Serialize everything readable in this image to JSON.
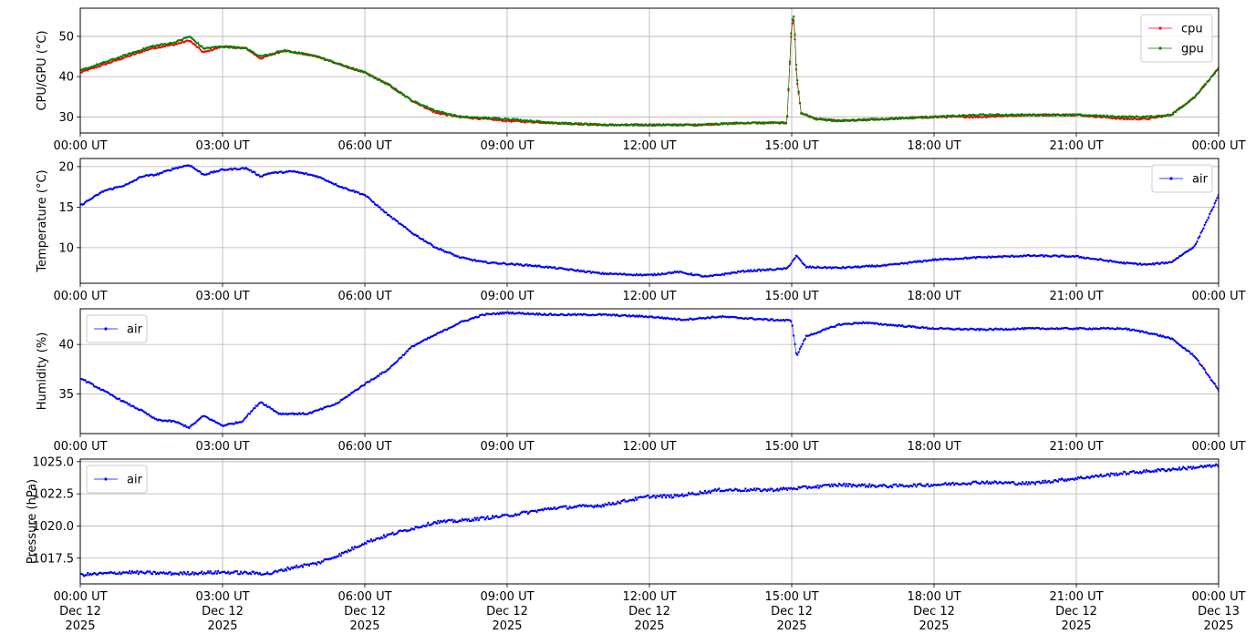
{
  "chart_data": [
    {
      "type": "line",
      "ylabel": "CPU/GPU (°C)",
      "x_ticks": [
        "00:00 UT",
        "03:00 UT",
        "06:00 UT",
        "09:00 UT",
        "12:00 UT",
        "15:00 UT",
        "18:00 UT",
        "21:00 UT",
        "00:00 UT"
      ],
      "xlim_hours": [
        0,
        24
      ],
      "ylim": [
        26,
        57
      ],
      "y_ticks": [
        30,
        40,
        50
      ],
      "grid": true,
      "legend_position": "top-right",
      "series": [
        {
          "name": "cpu",
          "color": "#ff0000",
          "x_hours": [
            0,
            0.5,
            1,
            1.5,
            2,
            2.3,
            2.6,
            3,
            3.5,
            3.8,
            4.3,
            5,
            5.6,
            6,
            6.5,
            7,
            7.5,
            8,
            9,
            10,
            11,
            12,
            13,
            14,
            14.9,
            15.0,
            15.05,
            15.1,
            15.2,
            15.5,
            16,
            17,
            18,
            19,
            20,
            21,
            22,
            22.5,
            23,
            23.5,
            24
          ],
          "values": [
            41,
            43,
            45,
            47,
            48,
            49,
            46,
            47.5,
            47,
            44.5,
            46.5,
            45,
            42.5,
            41,
            38,
            34,
            31,
            30,
            29,
            28.5,
            28,
            28,
            28,
            28.5,
            28.5,
            53,
            54,
            40,
            31,
            29.5,
            29,
            29.5,
            30,
            30,
            30.5,
            30.5,
            29.5,
            29.5,
            30.5,
            35,
            42
          ]
        },
        {
          "name": "gpu",
          "color": "#008000",
          "x_hours": [
            0,
            0.5,
            1,
            1.5,
            2,
            2.3,
            2.6,
            3,
            3.5,
            3.8,
            4.3,
            5,
            5.6,
            6,
            6.5,
            7,
            7.5,
            8,
            9,
            10,
            11,
            12,
            13,
            14,
            14.9,
            15.0,
            15.05,
            15.1,
            15.2,
            15.5,
            16,
            17,
            18,
            19,
            20,
            21,
            22,
            22.5,
            23,
            23.5,
            24
          ],
          "values": [
            41.5,
            43.5,
            45.5,
            47.5,
            48.5,
            50,
            47,
            47.5,
            47,
            45,
            46.5,
            45,
            42.5,
            41,
            38,
            34,
            31.5,
            30,
            29.5,
            28.5,
            28,
            28,
            28,
            28.5,
            28.5,
            54,
            55,
            41,
            31,
            29.5,
            29,
            29.5,
            30,
            30.5,
            30.5,
            30.5,
            30,
            30,
            30.5,
            35,
            42
          ]
        }
      ]
    },
    {
      "type": "line",
      "ylabel": "Temperature (°C)",
      "x_ticks": [
        "00:00 UT",
        "03:00 UT",
        "06:00 UT",
        "09:00 UT",
        "12:00 UT",
        "15:00 UT",
        "18:00 UT",
        "21:00 UT",
        "00:00 UT"
      ],
      "xlim_hours": [
        0,
        24
      ],
      "ylim": [
        5.6,
        21
      ],
      "y_ticks": [
        10,
        15,
        20
      ],
      "grid": true,
      "legend_position": "top-right",
      "series": [
        {
          "name": "air",
          "color": "#0000ff",
          "x_hours": [
            0,
            0.5,
            1,
            1.3,
            1.6,
            2,
            2.3,
            2.6,
            3,
            3.5,
            3.8,
            4,
            4.5,
            5,
            5.5,
            6,
            6.5,
            7,
            7.5,
            8,
            8.5,
            9,
            9.5,
            10,
            11,
            12,
            12.6,
            13.2,
            14,
            14.9,
            15.1,
            15.3,
            16,
            17,
            18,
            19,
            20,
            21,
            22,
            22.5,
            23,
            23.5,
            24
          ],
          "values": [
            15.2,
            17,
            17.8,
            18.8,
            19,
            19.8,
            20.2,
            19,
            19.6,
            19.8,
            18.8,
            19.2,
            19.4,
            18.8,
            17.5,
            16.5,
            14,
            11.8,
            10,
            8.8,
            8.2,
            8,
            7.8,
            7.5,
            6.8,
            6.6,
            7,
            6.4,
            7.1,
            7.4,
            9,
            7.6,
            7.5,
            7.8,
            8.5,
            8.8,
            9,
            8.9,
            8.1,
            7.9,
            8.2,
            10.2,
            16.4
          ]
        }
      ]
    },
    {
      "type": "line",
      "ylabel": "Humidity (%)",
      "x_ticks": [
        "00:00 UT",
        "03:00 UT",
        "06:00 UT",
        "09:00 UT",
        "12:00 UT",
        "15:00 UT",
        "18:00 UT",
        "21:00 UT",
        "00:00 UT"
      ],
      "xlim_hours": [
        0,
        24
      ],
      "ylim": [
        31,
        43.6
      ],
      "y_ticks": [
        35,
        40
      ],
      "grid": true,
      "legend_position": "top-left",
      "series": [
        {
          "name": "air",
          "color": "#0000ff",
          "x_hours": [
            0,
            0.5,
            1,
            1.3,
            1.6,
            2,
            2.3,
            2.6,
            3,
            3.4,
            3.8,
            4.2,
            4.8,
            5.4,
            6,
            6.5,
            7,
            7.5,
            8,
            8.5,
            9,
            10,
            11,
            12,
            12.7,
            13.5,
            14.5,
            15,
            15.1,
            15.3,
            16,
            16.5,
            17,
            18,
            19,
            20,
            21,
            22,
            22.5,
            23,
            23.5,
            24
          ],
          "values": [
            36.6,
            35.3,
            34,
            33.3,
            32.4,
            32.2,
            31.6,
            32.8,
            31.8,
            32.2,
            34.2,
            33,
            33,
            34,
            36,
            37.5,
            39.8,
            41,
            42.2,
            43,
            43.2,
            43,
            43,
            42.8,
            42.5,
            42.8,
            42.5,
            42.4,
            38.8,
            40.8,
            42,
            42.2,
            42,
            41.6,
            41.5,
            41.6,
            41.6,
            41.6,
            41.2,
            40.6,
            38.8,
            35.4
          ]
        }
      ]
    },
    {
      "type": "line",
      "ylabel": "Pressure (hPa)",
      "x_ticks": [
        "00:00 UT\nDec 12\n2025",
        "03:00 UT\nDec 12\n2025",
        "06:00 UT\nDec 12\n2025",
        "09:00 UT\nDec 12\n2025",
        "12:00 UT\nDec 12\n2025",
        "15:00 UT\nDec 12\n2025",
        "18:00 UT\nDec 12\n2025",
        "21:00 UT\nDec 12\n2025",
        "00:00 UT\nDec 13\n2025"
      ],
      "xlim_hours": [
        0,
        24
      ],
      "ylim": [
        1015.5,
        1025.2
      ],
      "y_ticks": [
        "1017.5",
        "1020.0",
        "1022.5",
        "1025.0"
      ],
      "grid": true,
      "legend_position": "top-left",
      "series": [
        {
          "name": "air",
          "color": "#0000ff",
          "x_hours": [
            0,
            1,
            2,
            3,
            4,
            4.5,
            5,
            5.5,
            6,
            6.5,
            7,
            7.5,
            8,
            8.5,
            9,
            10,
            11,
            12,
            12.5,
            13.5,
            14.5,
            15,
            16,
            17,
            18,
            19,
            20,
            21,
            22,
            23,
            24
          ],
          "values": [
            1016.2,
            1016.4,
            1016.3,
            1016.4,
            1016.3,
            1016.8,
            1017.1,
            1017.8,
            1018.7,
            1019.3,
            1019.8,
            1020.3,
            1020.4,
            1020.6,
            1020.8,
            1021.4,
            1021.6,
            1022.3,
            1022.3,
            1022.8,
            1022.8,
            1022.9,
            1023.2,
            1023.1,
            1023.2,
            1023.4,
            1023.3,
            1023.7,
            1024.1,
            1024.4,
            1024.7
          ]
        }
      ]
    }
  ]
}
